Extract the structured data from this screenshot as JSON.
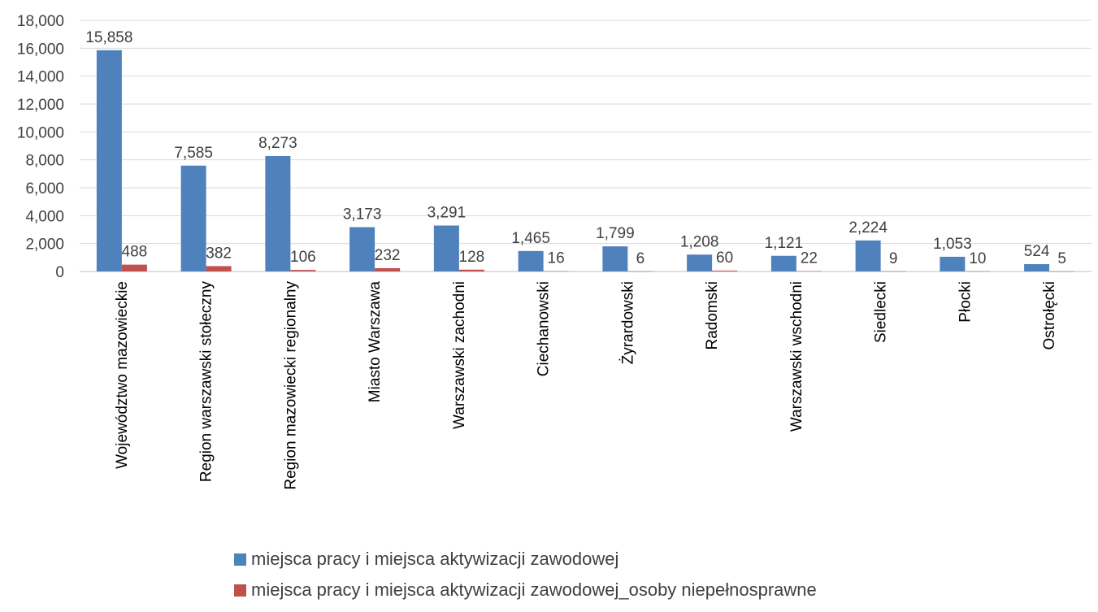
{
  "chart_data": {
    "type": "bar",
    "categories": [
      "Województwo mazowieckie",
      "Region warszawski stołeczny",
      "Region mazowiecki regionalny",
      "Miasto Warszawa",
      "Warszawski zachodni",
      "Ciechanowski",
      "Żyrardowski",
      "Radomski",
      "Warszawski wschodni",
      "Siedlecki",
      "Płocki",
      "Ostrołęcki"
    ],
    "series": [
      {
        "name": "miejsca pracy i miejsca aktywizacji zawodowej",
        "color": "#4f81bd",
        "values": [
          15858,
          7585,
          8273,
          3173,
          3291,
          1465,
          1799,
          1208,
          1121,
          2224,
          1053,
          524
        ],
        "labels": [
          "15,858",
          "7,585",
          "8,273",
          "3,173",
          "3,291",
          "1,465",
          "1,799",
          "1,208",
          "1,121",
          "2,224",
          "1,053",
          "524"
        ]
      },
      {
        "name": "miejsca pracy i miejsca aktywizacji zawodowej_osoby niepełnosprawne",
        "color": "#c0504d",
        "values": [
          488,
          382,
          106,
          232,
          128,
          16,
          6,
          60,
          22,
          9,
          10,
          5
        ],
        "labels": [
          "488",
          "382",
          "106",
          "232",
          "128",
          "16",
          "6",
          "60",
          "22",
          "9",
          "10",
          "5"
        ]
      }
    ],
    "ylim": [
      0,
      18000
    ],
    "yticks": [
      0,
      2000,
      4000,
      6000,
      8000,
      10000,
      12000,
      14000,
      16000,
      18000
    ],
    "ytick_labels": [
      "0",
      "2,000",
      "4,000",
      "6,000",
      "8,000",
      "10,000",
      "12,000",
      "14,000",
      "16,000",
      "18,000"
    ],
    "grid": true,
    "legend_position": "bottom",
    "gridline_color": "#d9d9d9"
  }
}
